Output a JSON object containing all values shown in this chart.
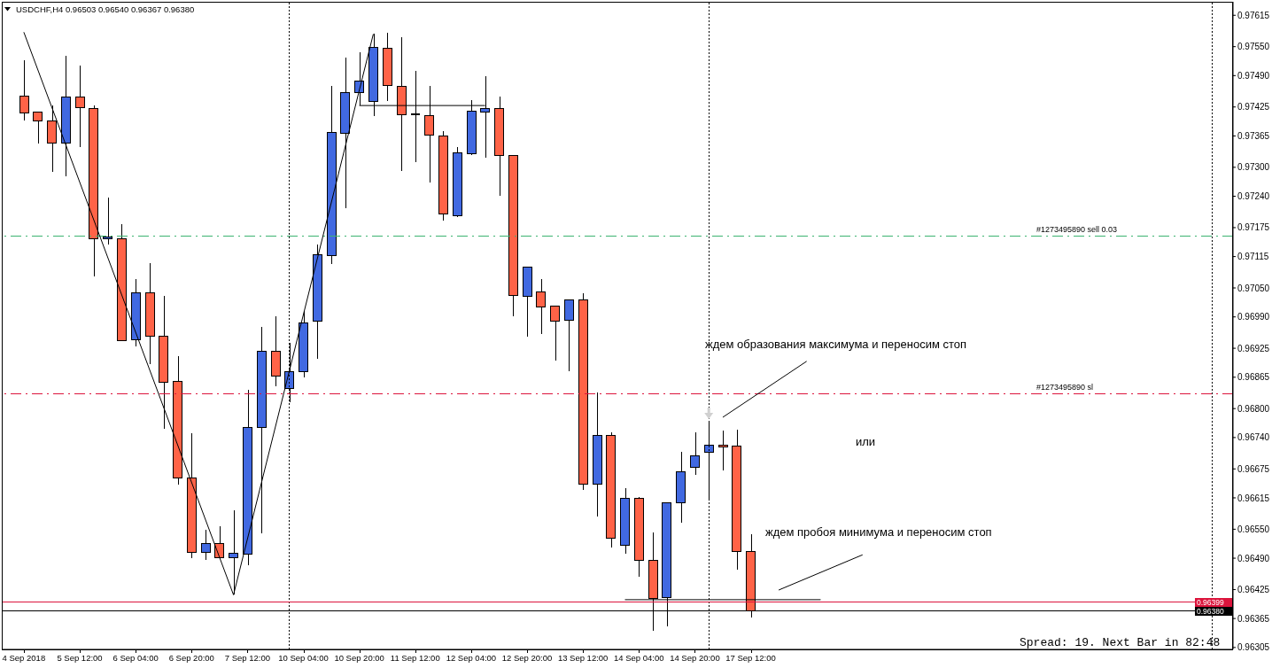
{
  "chart_data": {
    "type": "candlestick",
    "title": "USDCHF,H4 0.96503 0.96540 0.96367 0.96380",
    "categories": [
      "4 Sep 2018",
      null,
      null,
      null,
      "5 Sep 12:00",
      null,
      null,
      null,
      "6 Sep 04:00",
      null,
      null,
      null,
      "6 Sep 20:00",
      null,
      null,
      null,
      "7 Sep 12:00",
      null,
      null,
      null,
      "10 Sep 04:00",
      null,
      null,
      null,
      "10 Sep 20:00",
      null,
      null,
      null,
      "11 Sep 12:00",
      null,
      null,
      null,
      "12 Sep 04:00",
      null,
      null,
      null,
      "12 Sep 20:00",
      null,
      null,
      null,
      "13 Sep 12:00",
      null,
      null,
      null,
      "14 Sep 04:00",
      null,
      null,
      null,
      "14 Sep 20:00",
      null,
      null,
      null,
      "17 Sep 12:00",
      null,
      null,
      null,
      null,
      null,
      null,
      null,
      null,
      null,
      null,
      null,
      null,
      null,
      null,
      null,
      null,
      null,
      null,
      null,
      null,
      null,
      null,
      null,
      null,
      null,
      null,
      null,
      null,
      null,
      null,
      null,
      null,
      null,
      null
    ],
    "ohlc": [
      [
        0.97447,
        0.97521,
        0.97397,
        0.97413
      ],
      [
        0.97414,
        0.97414,
        0.97349,
        0.97396
      ],
      [
        0.97396,
        0.97429,
        0.9729,
        0.9735
      ],
      [
        0.9735,
        0.97531,
        0.97282,
        0.97446
      ],
      [
        0.97446,
        0.9751,
        0.97342,
        0.97424
      ],
      [
        0.97422,
        0.97428,
        0.97074,
        0.97152
      ],
      [
        0.97152,
        0.97238,
        0.9714,
        0.97156
      ],
      [
        0.97151,
        0.97183,
        0.96941,
        0.96941
      ],
      [
        0.96943,
        0.97068,
        0.96929,
        0.9704
      ],
      [
        0.9704,
        0.97101,
        0.96893,
        0.9695
      ],
      [
        0.9695,
        0.97033,
        0.96759,
        0.96855
      ],
      [
        0.96857,
        0.96908,
        0.96643,
        0.96657
      ],
      [
        0.96657,
        0.96749,
        0.96491,
        0.96502
      ],
      [
        0.96502,
        0.96548,
        0.96487,
        0.96521
      ],
      [
        0.96521,
        0.96556,
        0.96491,
        0.96491
      ],
      [
        0.96491,
        0.96589,
        0.96414,
        0.96501
      ],
      [
        0.96499,
        0.96839,
        0.96476,
        0.96761
      ],
      [
        0.96761,
        0.96969,
        0.96541,
        0.96919
      ],
      [
        0.96919,
        0.96991,
        0.96847,
        0.96868
      ],
      [
        0.96842,
        0.96937,
        0.96814,
        0.96877
      ],
      [
        0.96877,
        0.97003,
        0.96865,
        0.96978
      ],
      [
        0.96981,
        0.9714,
        0.96904,
        0.97119
      ],
      [
        0.97117,
        0.97468,
        0.971,
        0.97372
      ],
      [
        0.9737,
        0.97527,
        0.97216,
        0.97455
      ],
      [
        0.97455,
        0.97539,
        0.97429,
        0.97479
      ],
      [
        0.97437,
        0.97576,
        0.97406,
        0.97548
      ],
      [
        0.97547,
        0.97578,
        0.97438,
        0.97469
      ],
      [
        0.97468,
        0.97569,
        0.97293,
        0.97409
      ],
      [
        0.97409,
        0.97499,
        0.97311,
        0.97409
      ],
      [
        0.97407,
        0.97468,
        0.97269,
        0.97367
      ],
      [
        0.97365,
        0.97375,
        0.9719,
        0.97203
      ],
      [
        0.972,
        0.97342,
        0.97197,
        0.9733
      ],
      [
        0.97328,
        0.97439,
        0.97325,
        0.97416
      ],
      [
        0.97414,
        0.97488,
        0.9732,
        0.97422
      ],
      [
        0.97422,
        0.97446,
        0.97241,
        0.97325
      ],
      [
        0.97325,
        0.97325,
        0.96992,
        0.97035
      ],
      [
        0.97033,
        0.97093,
        0.96949,
        0.97093
      ],
      [
        0.97042,
        0.97068,
        0.96955,
        0.9701
      ],
      [
        0.97013,
        0.97013,
        0.96899,
        0.96981
      ],
      [
        0.96983,
        0.97025,
        0.96877,
        0.97025
      ],
      [
        0.97025,
        0.97039,
        0.96632,
        0.96644
      ],
      [
        0.96644,
        0.96833,
        0.96577,
        0.96745
      ],
      [
        0.96745,
        0.9675,
        0.96512,
        0.96532
      ],
      [
        0.96517,
        0.96636,
        0.96499,
        0.96614
      ],
      [
        0.96614,
        0.96617,
        0.96452,
        0.96486
      ],
      [
        0.96486,
        0.96544,
        0.96339,
        0.96407
      ],
      [
        0.96409,
        0.96606,
        0.96348,
        0.96604
      ],
      [
        0.96605,
        0.9671,
        0.96564,
        0.96669
      ],
      [
        0.96679,
        0.96751,
        0.96663,
        0.96702
      ],
      [
        0.9671,
        0.96773,
        0.96614,
        0.96724
      ],
      [
        0.96724,
        0.96754,
        0.96672,
        0.96721
      ],
      [
        0.96723,
        0.96756,
        0.96467,
        0.96504
      ],
      [
        0.96503,
        0.9654,
        0.96367,
        0.9638
      ],
      null,
      null,
      null,
      null,
      null,
      null,
      null,
      null,
      null,
      null,
      null,
      null,
      null,
      null,
      null,
      null,
      null,
      null,
      null,
      null,
      null,
      null,
      null,
      null,
      null,
      null,
      null,
      null,
      null,
      null,
      null,
      null,
      null,
      null
    ],
    "colors": [
      "#ff6347",
      "#ff6347",
      "#ff6347",
      "#4169e1",
      "#ff6347",
      "#ff6347",
      "#4169e1",
      "#ff6347",
      "#4169e1",
      "#ff6347",
      "#ff6347",
      "#ff6347",
      "#ff6347",
      "#4169e1",
      "#ff6347",
      "#4169e1",
      "#4169e1",
      "#4169e1",
      "#ff6347",
      "#4169e1",
      "#4169e1",
      "#4169e1",
      "#4169e1",
      "#4169e1",
      "#4169e1",
      "#4169e1",
      "#ff6347",
      "#ff6347",
      "#000000",
      "#ff6347",
      "#ff6347",
      "#4169e1",
      "#4169e1",
      "#4169e1",
      "#ff6347",
      "#ff6347",
      "#4169e1",
      "#ff6347",
      "#ff6347",
      "#4169e1",
      "#ff6347",
      "#4169e1",
      "#ff6347",
      "#4169e1",
      "#ff6347",
      "#ff6347",
      "#4169e1",
      "#4169e1",
      "#4169e1",
      "#4169e1",
      "#ff6347",
      "#ff6347",
      "#ff6347",
      null,
      null,
      null,
      null,
      null,
      null,
      null,
      null,
      null,
      null,
      null,
      null,
      null,
      null,
      null,
      null,
      null,
      null,
      null,
      null,
      null,
      null,
      null,
      null,
      null,
      null,
      null,
      null,
      null,
      null,
      null,
      null,
      null,
      null
    ],
    "series": [
      {
        "type": "line",
        "color": "#000000",
        "values": [
          0.9758,
          null,
          null,
          null,
          null,
          null,
          null,
          null,
          null,
          null,
          null,
          null,
          null,
          null,
          null,
          0.96414,
          null,
          null,
          null,
          null,
          null,
          null,
          null,
          null,
          null,
          0.97576,
          null,
          null,
          null,
          null,
          null,
          null,
          null,
          null,
          null,
          null,
          null,
          null,
          null,
          null,
          null,
          null,
          null,
          null,
          null,
          null,
          null,
          null,
          null,
          null,
          null,
          null,
          null,
          null,
          null,
          null,
          null,
          null,
          null,
          null,
          null,
          null,
          null,
          null,
          null,
          null,
          null,
          null,
          null,
          null,
          null,
          null,
          null,
          null,
          null,
          null,
          null,
          null,
          null,
          null,
          null,
          null,
          null,
          null,
          null,
          null,
          null
        ]
      },
      {
        "type": "line",
        "color": "#000000",
        "values": [
          null,
          null,
          null,
          null,
          null,
          null,
          null,
          null,
          null,
          null,
          null,
          null,
          null,
          null,
          null,
          null,
          null,
          null,
          null,
          null,
          null,
          null,
          null,
          null,
          0.97428,
          null,
          null,
          null,
          null,
          null,
          null,
          null,
          null,
          0.97428,
          null,
          null,
          null,
          null,
          null,
          null,
          null,
          null,
          null,
          null,
          null,
          null,
          null,
          null,
          null,
          null,
          null,
          null,
          null,
          null,
          null,
          null,
          null,
          null,
          null,
          null,
          null,
          null,
          null,
          null,
          null,
          null,
          null,
          null,
          null,
          null,
          null,
          null,
          null,
          null,
          null,
          null,
          null,
          null,
          null,
          null,
          null,
          null,
          null,
          null,
          null,
          null,
          null
        ]
      },
      {
        "type": "line",
        "color": "#000000",
        "values": [
          null,
          null,
          null,
          null,
          null,
          null,
          null,
          null,
          null,
          null,
          null,
          null,
          null,
          null,
          null,
          null,
          null,
          null,
          null,
          null,
          null,
          null,
          null,
          null,
          null,
          null,
          null,
          null,
          null,
          null,
          null,
          null,
          null,
          null,
          null,
          null,
          null,
          null,
          null,
          null,
          null,
          null,
          null,
          0.96404,
          null,
          null,
          null,
          null,
          null,
          null,
          null,
          null,
          null,
          null,
          null,
          null,
          null,
          0.96404,
          null,
          null,
          null,
          null,
          null,
          null,
          null,
          null,
          null,
          null,
          null,
          null,
          null,
          null,
          null,
          null,
          null,
          null,
          null,
          null,
          null,
          null,
          null,
          null,
          null,
          null,
          null,
          null,
          null
        ]
      },
      {
        "type": "line",
        "color": "#000000",
        "values": [
          null,
          null,
          null,
          null,
          null,
          null,
          null,
          null,
          null,
          null,
          null,
          null,
          null,
          null,
          null,
          null,
          null,
          null,
          null,
          null,
          null,
          null,
          null,
          null,
          null,
          null,
          null,
          null,
          null,
          null,
          null,
          null,
          null,
          null,
          null,
          null,
          null,
          null,
          null,
          null,
          null,
          null,
          null,
          null,
          null,
          null,
          null,
          null,
          null,
          null,
          0.96782,
          null,
          null,
          null,
          null,
          null,
          0.96898,
          null,
          null,
          null,
          null,
          null,
          null,
          null,
          null,
          null,
          null,
          null,
          null,
          null,
          null,
          null,
          null,
          null,
          null,
          null,
          null,
          null,
          null,
          null,
          null,
          null,
          null,
          null,
          null,
          null,
          null
        ]
      },
      {
        "type": "line",
        "color": "#000000",
        "values": [
          null,
          null,
          null,
          null,
          null,
          null,
          null,
          null,
          null,
          null,
          null,
          null,
          null,
          null,
          null,
          null,
          null,
          null,
          null,
          null,
          null,
          null,
          null,
          null,
          null,
          null,
          null,
          null,
          null,
          null,
          null,
          null,
          null,
          null,
          null,
          null,
          null,
          null,
          null,
          null,
          null,
          null,
          null,
          null,
          null,
          null,
          null,
          null,
          null,
          null,
          null,
          null,
          null,
          null,
          0.96424,
          null,
          null,
          null,
          null,
          null,
          0.96497,
          null,
          null,
          null,
          null,
          null,
          null,
          null,
          null,
          null,
          null,
          null,
          null,
          null,
          null,
          null,
          null,
          null,
          null,
          null,
          null,
          null,
          null,
          null,
          null,
          null,
          null
        ]
      }
    ],
    "ylim": [
      0.96301,
      0.97643
    ],
    "yticks": [
      0.97615,
      {
        "value": 0.9755,
        "label": "0.97550"
      },
      {
        "value": 0.9749,
        "label": "0.97490"
      },
      0.97425,
      0.97365,
      {
        "value": 0.973,
        "label": "0.97300"
      },
      {
        "value": 0.9724,
        "label": "0.97240"
      },
      0.97175,
      0.97115,
      {
        "value": 0.9705,
        "label": "0.97050"
      },
      {
        "value": 0.9699,
        "label": "0.96990"
      },
      0.96925,
      0.96865,
      {
        "value": 0.968,
        "label": "0.96800"
      },
      {
        "value": 0.9674,
        "label": "0.96740"
      },
      0.96675,
      0.96615,
      {
        "value": 0.9655,
        "label": "0.96550"
      },
      {
        "value": 0.9649,
        "label": "0.96490"
      },
      0.96425,
      0.96365,
      0.96305
    ],
    "ref_lines": [
      {
        "axis": "y",
        "value": 0.97158,
        "label": "#1273495890 sell 0.03",
        "color": "#3cb371",
        "line_style": "dashdot"
      },
      {
        "axis": "y",
        "value": 0.96831,
        "label": "#1273495890 sl",
        "color": "#dc143c",
        "line_style": "dashdot"
      },
      {
        "axis": "y",
        "value": 0.96399,
        "label": "0.96399",
        "color": "#dc143c",
        "line_style": "solid"
      },
      {
        "axis": "y",
        "value": 0.9638,
        "label": "0.96380",
        "color": "#000000",
        "line_style": "solid"
      }
    ],
    "annotations": [
      "ждем образования максимума и переносим стоп",
      "или",
      "ждем пробоя минимума и переносим стоп",
      "Spread: 19. Next Bar in 82:48"
    ]
  }
}
